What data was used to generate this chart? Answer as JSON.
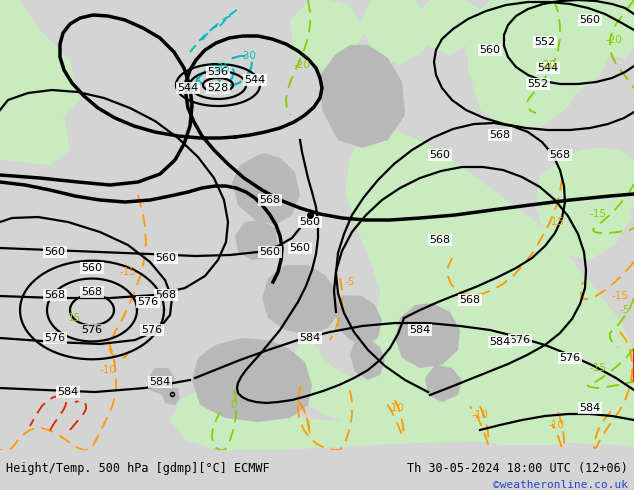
{
  "title_left": "Height/Temp. 500 hPa [gdmp][°C] ECMWF",
  "title_right": "Th 30-05-2024 18:00 UTC (12+06)",
  "credit": "©weatheronline.co.uk",
  "green_fill": "#c8ecc0",
  "gray_fill": "#b8b8b8",
  "light_gray": "#d0d0d0",
  "bg_color": "#d4d4d4"
}
